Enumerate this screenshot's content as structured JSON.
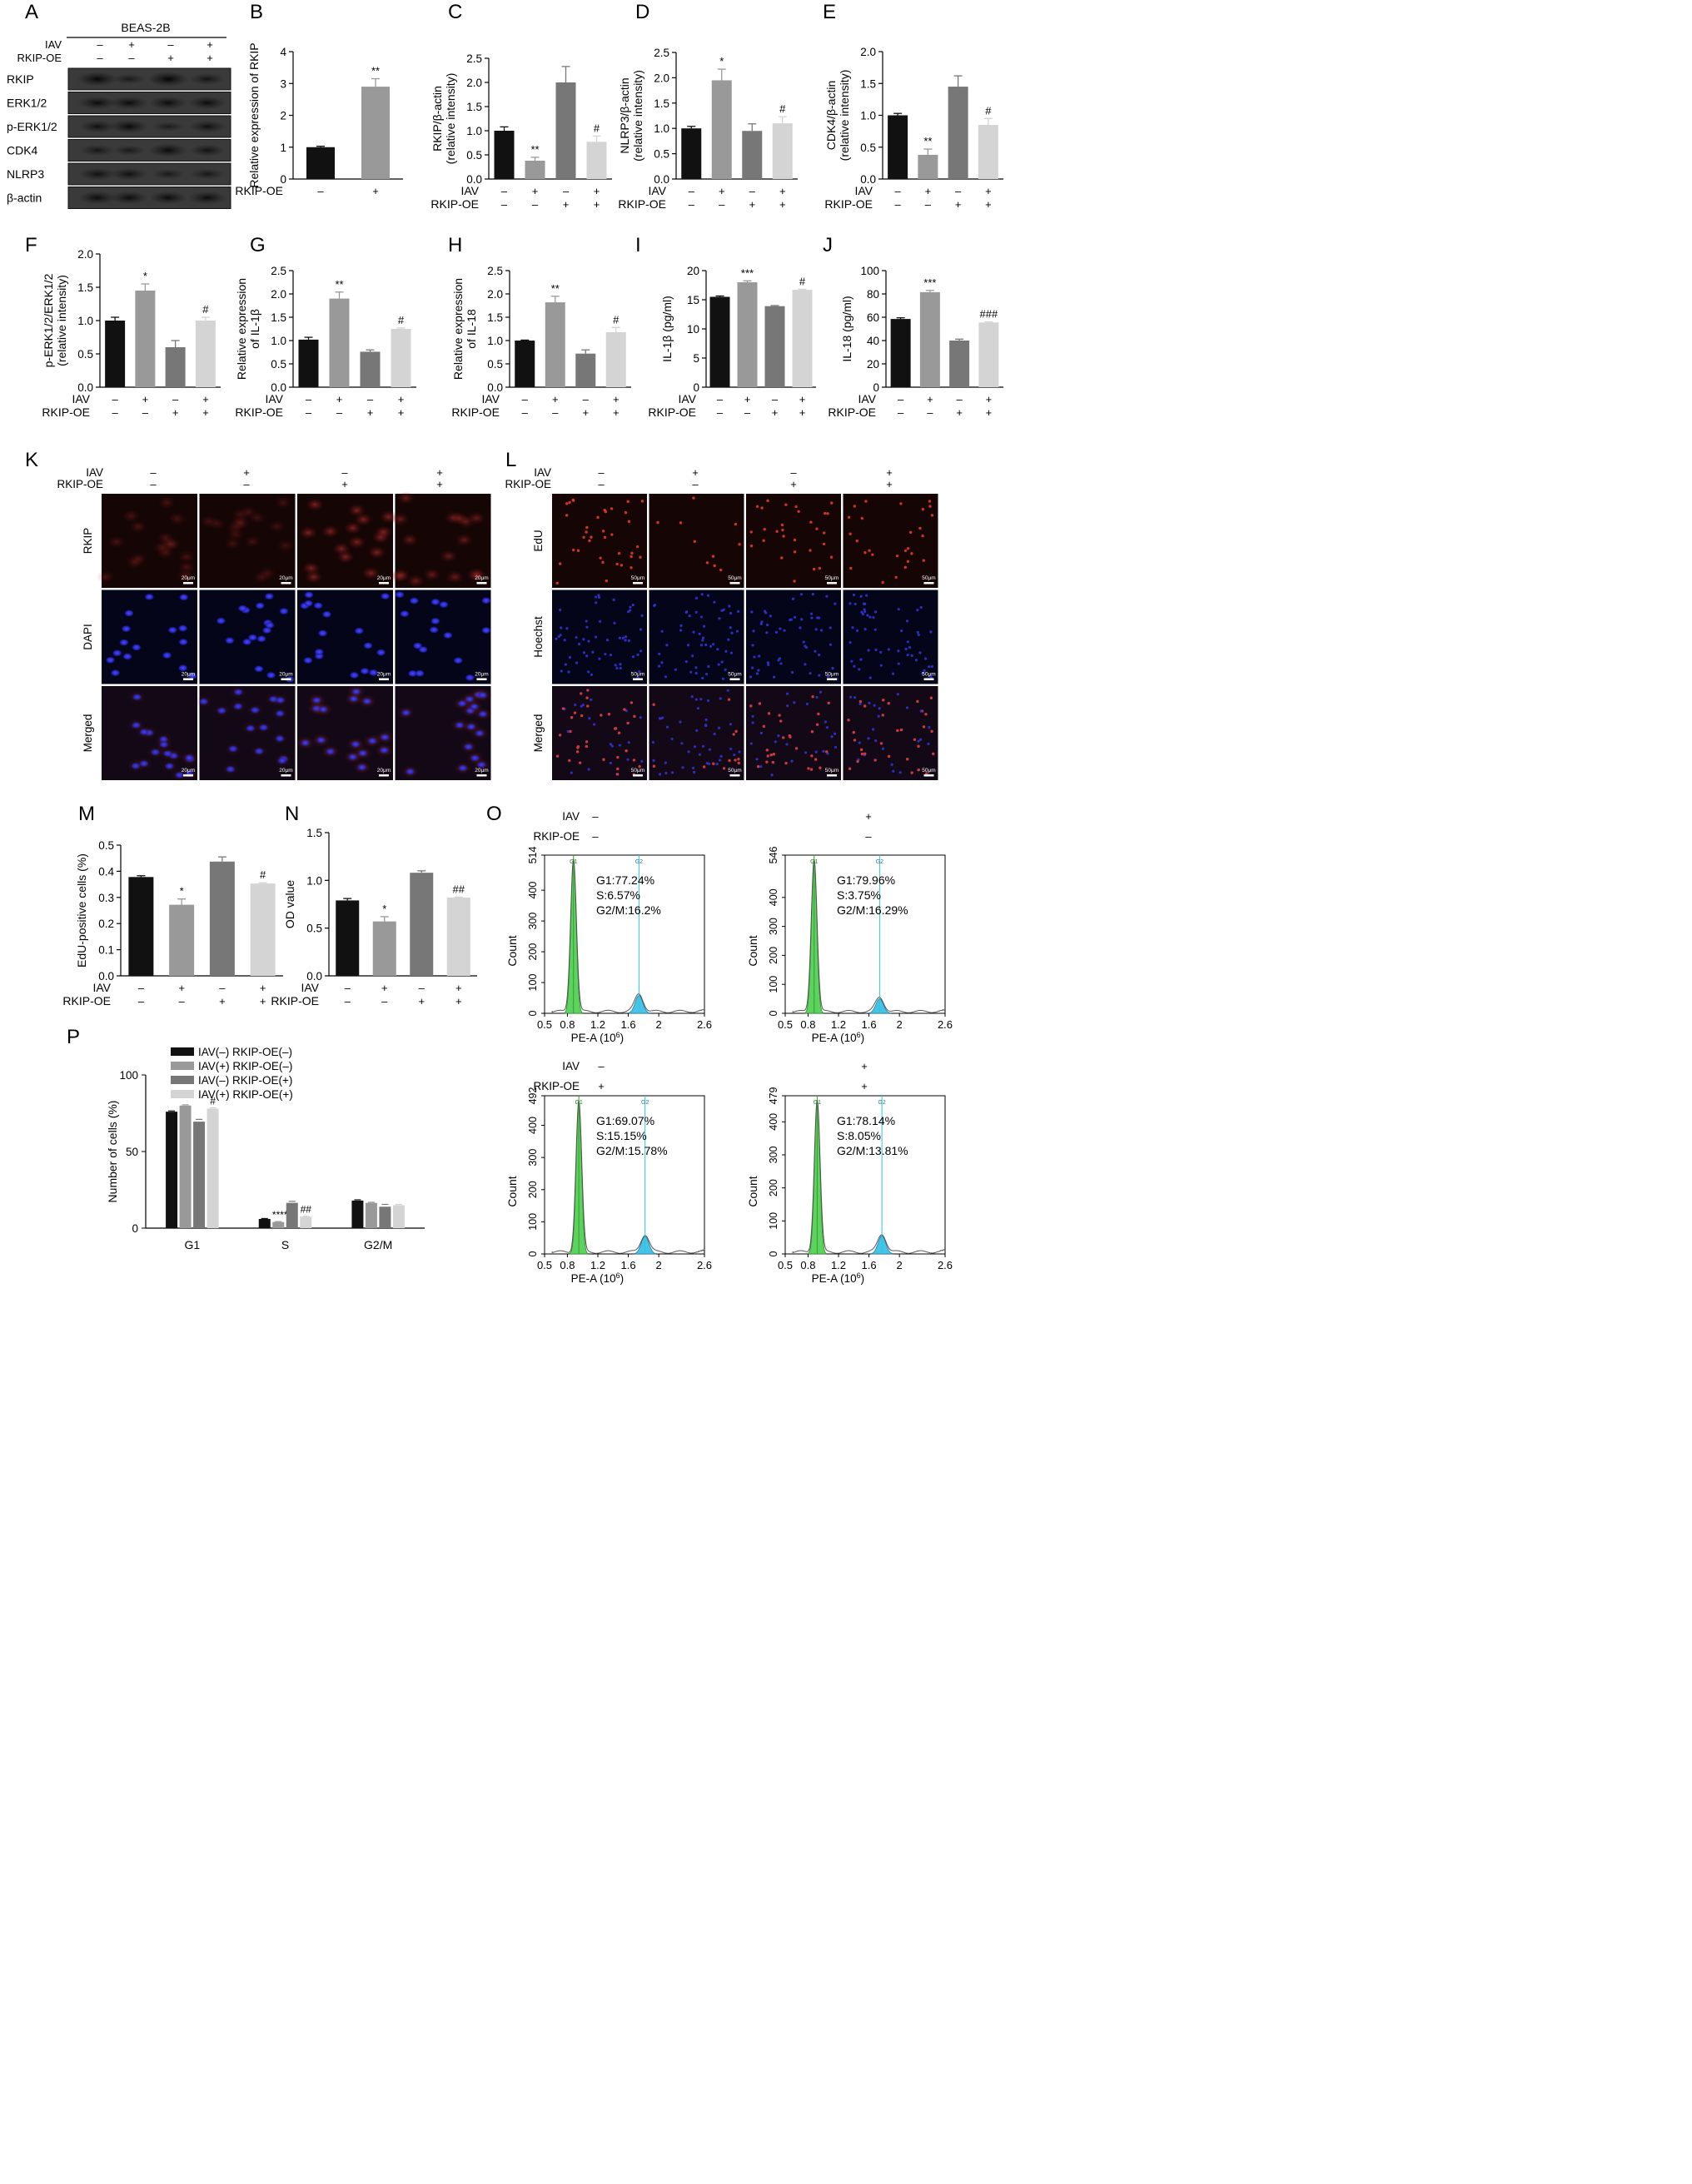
{
  "panel_letters": [
    "A",
    "B",
    "C",
    "D",
    "E",
    "F",
    "G",
    "H",
    "I",
    "J",
    "K",
    "L",
    "M",
    "N",
    "O",
    "P"
  ],
  "colors": {
    "black": "#111111",
    "midgray": "#999999",
    "darkgray": "#777777",
    "lightgray": "#d4d4d4",
    "g1_fill": "#5ed25e",
    "g2_fill": "#45c4e8",
    "blot_bg": "#3a3a3a",
    "blue_channel": "#3232d2",
    "red_channel": "#b42828"
  },
  "western_blot": {
    "cell_line": "BEAS-2B",
    "rows": [
      "IAV",
      "RKIP-OE"
    ],
    "signs": [
      [
        "–",
        "+",
        "–",
        "+"
      ],
      [
        "–",
        "–",
        "+",
        "+"
      ]
    ],
    "bands": [
      {
        "name": "RKIP",
        "intensity": [
          0.95,
          0.45,
          1.0,
          0.6
        ]
      },
      {
        "name": "ERK1/2",
        "intensity": [
          0.8,
          0.8,
          0.8,
          0.8
        ]
      },
      {
        "name": "p-ERK1/2",
        "intensity": [
          0.7,
          0.85,
          0.4,
          0.7
        ]
      },
      {
        "name": "CDK4",
        "intensity": [
          0.55,
          0.45,
          0.85,
          0.65
        ]
      },
      {
        "name": "NLRP3",
        "intensity": [
          0.7,
          0.7,
          0.45,
          0.5
        ]
      },
      {
        "name": "β-actin",
        "intensity": [
          0.8,
          0.8,
          0.8,
          0.8
        ]
      }
    ]
  },
  "chart_data": [
    {
      "id": "B",
      "type": "bar",
      "ylabel": "Relative expression of RKIP",
      "ylim": [
        0,
        4
      ],
      "yticks": [
        "0",
        "1",
        "2",
        "3",
        "4"
      ],
      "values": [
        1.0,
        2.9
      ],
      "errors": [
        0.03,
        0.25
      ],
      "colors": [
        "black",
        "midgray"
      ],
      "sig": [
        "",
        "**"
      ],
      "sign_rows": [
        {
          "label": "RKIP-OE",
          "signs": [
            "–",
            "+"
          ]
        }
      ]
    },
    {
      "id": "C",
      "type": "bar",
      "ylabel": [
        "RKIP/β-actin",
        "(relative intensity)"
      ],
      "ylim": [
        0,
        2.5
      ],
      "yticks": [
        "0.0",
        "0.5",
        "1.0",
        "1.5",
        "2.0",
        "2.5"
      ],
      "values": [
        1.0,
        0.38,
        2.0,
        0.77
      ],
      "errors": [
        0.08,
        0.07,
        0.33,
        0.12
      ],
      "colors": [
        "black",
        "midgray",
        "darkgray",
        "lightgray"
      ],
      "sig": [
        "",
        "**",
        "",
        "#"
      ],
      "sign_rows": [
        {
          "label": "IAV",
          "signs": [
            "–",
            "+",
            "–",
            "+"
          ]
        },
        {
          "label": "RKIP-OE",
          "signs": [
            "–",
            "–",
            "+",
            "+"
          ]
        }
      ]
    },
    {
      "id": "D",
      "type": "bar",
      "ylabel": [
        "NLRP3/β-actin",
        "(relative intensity)"
      ],
      "ylim": [
        0,
        2.5
      ],
      "yticks": [
        "0.0",
        "0.5",
        "1.0",
        "1.5",
        "2.0",
        "2.5"
      ],
      "values": [
        1.0,
        1.95,
        0.95,
        1.1
      ],
      "errors": [
        0.04,
        0.22,
        0.14,
        0.13
      ],
      "colors": [
        "black",
        "midgray",
        "darkgray",
        "lightgray"
      ],
      "sig": [
        "",
        "*",
        "",
        "#"
      ],
      "sign_rows": [
        {
          "label": "IAV",
          "signs": [
            "–",
            "+",
            "–",
            "+"
          ]
        },
        {
          "label": "RKIP-OE",
          "signs": [
            "–",
            "–",
            "+",
            "+"
          ]
        }
      ]
    },
    {
      "id": "E",
      "type": "bar",
      "ylabel": [
        "CDK4/β-actin",
        "(relative intensity)"
      ],
      "ylim": [
        0,
        2.0
      ],
      "yticks": [
        "0.0",
        "0.5",
        "1.0",
        "1.5",
        "2.0"
      ],
      "values": [
        1.0,
        0.38,
        1.45,
        0.85
      ],
      "errors": [
        0.03,
        0.09,
        0.17,
        0.1
      ],
      "colors": [
        "black",
        "midgray",
        "darkgray",
        "lightgray"
      ],
      "sig": [
        "",
        "**",
        "",
        "#"
      ],
      "sign_rows": [
        {
          "label": "IAV",
          "signs": [
            "–",
            "+",
            "–",
            "+"
          ]
        },
        {
          "label": "RKIP-OE",
          "signs": [
            "–",
            "–",
            "+",
            "+"
          ]
        }
      ]
    },
    {
      "id": "F",
      "type": "bar",
      "ylabel": [
        "p-ERK1/2/ERK1/2",
        "(relative intensity)"
      ],
      "ylim": [
        0,
        2.0
      ],
      "yticks": [
        "0.0",
        "0.5",
        "1.0",
        "1.5",
        "2.0"
      ],
      "values": [
        1.0,
        1.45,
        0.6,
        1.0
      ],
      "errors": [
        0.05,
        0.1,
        0.1,
        0.05
      ],
      "colors": [
        "black",
        "midgray",
        "darkgray",
        "lightgray"
      ],
      "sig": [
        "",
        "*",
        "",
        "#"
      ],
      "sign_rows": [
        {
          "label": "IAV",
          "signs": [
            "–",
            "+",
            "–",
            "+"
          ]
        },
        {
          "label": "RKIP-OE",
          "signs": [
            "–",
            "–",
            "+",
            "+"
          ]
        }
      ]
    },
    {
      "id": "G",
      "type": "bar",
      "ylabel": [
        "Relative expression",
        "of IL-1β"
      ],
      "ylim": [
        0,
        2.5
      ],
      "yticks": [
        "0.0",
        "0.5",
        "1.0",
        "1.5",
        "2.0",
        "2.5"
      ],
      "values": [
        1.02,
        1.9,
        0.76,
        1.25
      ],
      "errors": [
        0.05,
        0.14,
        0.04,
        0.02
      ],
      "colors": [
        "black",
        "midgray",
        "darkgray",
        "lightgray"
      ],
      "sig": [
        "",
        "**",
        "",
        "#"
      ],
      "sign_rows": [
        {
          "label": "IAV",
          "signs": [
            "–",
            "+",
            "–",
            "+"
          ]
        },
        {
          "label": "RKIP-OE",
          "signs": [
            "–",
            "–",
            "+",
            "+"
          ]
        }
      ]
    },
    {
      "id": "H",
      "type": "bar",
      "ylabel": [
        "Relative expression",
        "of IL-18"
      ],
      "ylim": [
        0,
        2.5
      ],
      "yticks": [
        "0.0",
        "0.5",
        "1.0",
        "1.5",
        "2.0",
        "2.5"
      ],
      "values": [
        1.0,
        1.82,
        0.72,
        1.18
      ],
      "errors": [
        0.01,
        0.13,
        0.08,
        0.1
      ],
      "colors": [
        "black",
        "midgray",
        "darkgray",
        "lightgray"
      ],
      "sig": [
        "",
        "**",
        "",
        "#"
      ],
      "sign_rows": [
        {
          "label": "IAV",
          "signs": [
            "–",
            "+",
            "–",
            "+"
          ]
        },
        {
          "label": "RKIP-OE",
          "signs": [
            "–",
            "–",
            "+",
            "+"
          ]
        }
      ]
    },
    {
      "id": "I",
      "type": "bar",
      "ylabel": "IL-1β (pg/ml)",
      "ylim": [
        0,
        20
      ],
      "yticks": [
        "0",
        "5",
        "10",
        "15",
        "20"
      ],
      "values": [
        15.5,
        18.0,
        13.9,
        16.7
      ],
      "errors": [
        0.15,
        0.25,
        0.1,
        0.1
      ],
      "colors": [
        "black",
        "midgray",
        "darkgray",
        "lightgray"
      ],
      "sig": [
        "",
        "***",
        "",
        "#"
      ],
      "sign_rows": [
        {
          "label": "IAV",
          "signs": [
            "–",
            "+",
            "–",
            "+"
          ]
        },
        {
          "label": "RKIP-OE",
          "signs": [
            "–",
            "–",
            "+",
            "+"
          ]
        }
      ]
    },
    {
      "id": "J",
      "type": "bar",
      "ylabel": "IL-18 (pg/ml)",
      "ylim": [
        0,
        100
      ],
      "yticks": [
        "0",
        "20",
        "40",
        "60",
        "80",
        "100"
      ],
      "values": [
        58.5,
        81.5,
        40.0,
        55.5
      ],
      "errors": [
        1.0,
        1.5,
        1.2,
        0.5
      ],
      "colors": [
        "black",
        "midgray",
        "darkgray",
        "lightgray"
      ],
      "sig": [
        "",
        "***",
        "",
        "###"
      ],
      "sign_rows": [
        {
          "label": "IAV",
          "signs": [
            "–",
            "+",
            "–",
            "+"
          ]
        },
        {
          "label": "RKIP-OE",
          "signs": [
            "–",
            "–",
            "+",
            "+"
          ]
        }
      ]
    },
    {
      "id": "M",
      "type": "bar",
      "ylabel": "EdU-positive cells (%)",
      "ylim": [
        0,
        0.5
      ],
      "yticks": [
        "0.0",
        "0.1",
        "0.2",
        "0.3",
        "0.4",
        "0.5"
      ],
      "values": [
        0.378,
        0.272,
        0.437,
        0.353
      ],
      "errors": [
        0.005,
        0.022,
        0.018,
        0.003
      ],
      "colors": [
        "black",
        "midgray",
        "darkgray",
        "lightgray"
      ],
      "sig": [
        "",
        "*",
        "",
        "#"
      ],
      "sign_rows": [
        {
          "label": "IAV",
          "signs": [
            "–",
            "+",
            "–",
            "+"
          ]
        },
        {
          "label": "RKIP-OE",
          "signs": [
            "–",
            "–",
            "+",
            "+"
          ]
        }
      ]
    },
    {
      "id": "N",
      "type": "bar",
      "ylabel": "OD value",
      "ylim": [
        0,
        1.5
      ],
      "yticks": [
        "0.0",
        "0.5",
        "1.0",
        "1.5"
      ],
      "values": [
        0.79,
        0.57,
        1.08,
        0.82
      ],
      "errors": [
        0.02,
        0.05,
        0.02,
        0.005
      ],
      "colors": [
        "black",
        "midgray",
        "darkgray",
        "lightgray"
      ],
      "sig": [
        "",
        "*",
        "",
        "##"
      ],
      "sign_rows": [
        {
          "label": "IAV",
          "signs": [
            "–",
            "+",
            "–",
            "+"
          ]
        },
        {
          "label": "RKIP-OE",
          "signs": [
            "–",
            "–",
            "+",
            "+"
          ]
        }
      ]
    },
    {
      "id": "P",
      "type": "bar",
      "ylabel": "Number of cells (%)",
      "ylim": [
        0,
        100
      ],
      "yticks": [
        "0",
        "50",
        "100"
      ],
      "categories": [
        "G1",
        "S",
        "G2/M"
      ],
      "series": [
        {
          "name": "IAV(–) RKIP-OE(–)",
          "color": "black",
          "values": [
            76,
            6,
            18
          ],
          "errors": [
            0.5,
            0.3,
            0.5
          ]
        },
        {
          "name": "IAV(+) RKIP-OE(–)",
          "color": "midgray",
          "values": [
            80,
            4,
            16.5
          ],
          "errors": [
            0.5,
            0.3,
            0.4
          ]
        },
        {
          "name": "IAV(–) RKIP-OE(+)",
          "color": "darkgray",
          "values": [
            69.5,
            16.5,
            14
          ],
          "errors": [
            1.5,
            1,
            1.5
          ]
        },
        {
          "name": "IAV(+) RKIP-OE(+)",
          "color": "lightgray",
          "values": [
            78,
            7.5,
            15
          ],
          "errors": [
            0.5,
            0.3,
            0.5
          ]
        }
      ],
      "sig": [
        [
          "",
          "**",
          "",
          "#"
        ],
        [
          "",
          "****",
          "",
          "##"
        ],
        [
          "",
          "",
          "",
          ""
        ]
      ]
    },
    {
      "id": "O",
      "type": "line",
      "xlabel": "PE-A (10",
      "xlabel_exp": "6",
      "xlabel_close": ")",
      "ylabel": "Count",
      "xlim": [
        0.5,
        2.6
      ],
      "xticks": [
        "0.5",
        "0.8",
        "1.2",
        "1.6",
        "2",
        "2.6"
      ],
      "yticks": [
        "0",
        "100",
        "200",
        "300",
        "400"
      ],
      "peak_labels": [
        "G1",
        "G2"
      ],
      "plots": [
        {
          "iav": "–",
          "rkip": "–",
          "ymax": 514,
          "g1_text": "G1:77.24%",
          "s_text": "S:6.57%",
          "g2_text": "G2/M:16.2%",
          "g1_peak": 0.88,
          "g2_peak": 1.74,
          "g1_height": 500,
          "g2_height": 58
        },
        {
          "iav": "+",
          "rkip": "–",
          "ymax": 546,
          "g1_text": "G1:79.96%",
          "s_text": "S:3.75%",
          "g2_text": "G2/M:16.29%",
          "g1_peak": 0.88,
          "g2_peak": 1.74,
          "g1_height": 530,
          "g2_height": 50
        },
        {
          "iav": "–",
          "rkip": "+",
          "ymax": 492,
          "g1_text": "G1:69.07%",
          "s_text": "S:15.15%",
          "g2_text": "G2/M:15.78%",
          "g1_peak": 0.95,
          "g2_peak": 1.82,
          "g1_height": 470,
          "g2_height": 55
        },
        {
          "iav": "+",
          "rkip": "+",
          "ymax": 479,
          "g1_text": "G1:78.14%",
          "s_text": "S:8.05%",
          "g2_text": "G2/M:13.81%",
          "g1_peak": 0.92,
          "g2_peak": 1.77,
          "g1_height": 462,
          "g2_height": 55
        }
      ]
    }
  ],
  "fluorescence": {
    "K": {
      "channels": [
        "RKIP",
        "DAPI",
        "Merged"
      ],
      "scale_bar": "20μm",
      "signs": [
        [
          "–",
          "+",
          "–",
          "+"
        ],
        [
          "–",
          "–",
          "+",
          "+"
        ]
      ]
    },
    "L": {
      "channels": [
        "EdU",
        "Hoechst",
        "Merged"
      ],
      "scale_bar": "50μm",
      "signs": [
        [
          "–",
          "+",
          "–",
          "+"
        ],
        [
          "–",
          "–",
          "+",
          "+"
        ]
      ]
    }
  },
  "labels": {
    "iav": "IAV",
    "rkip": "RKIP-OE"
  }
}
